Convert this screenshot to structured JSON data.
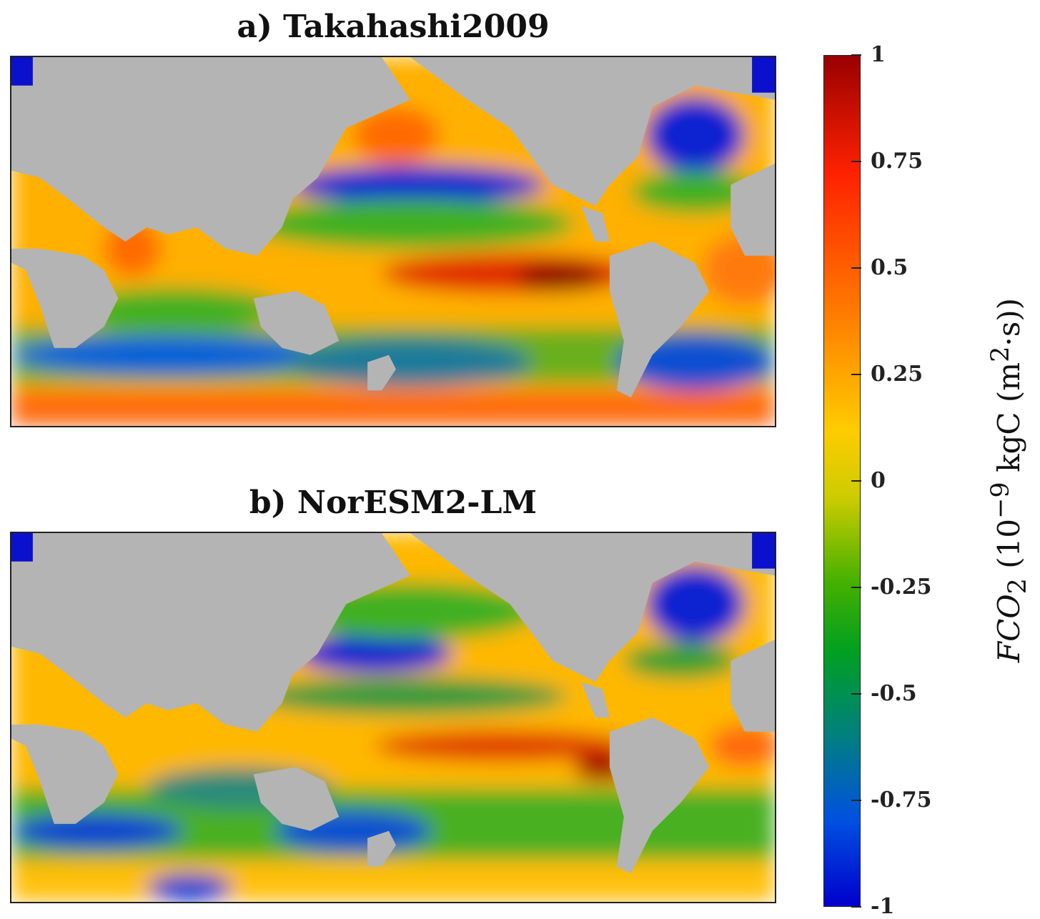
{
  "panels": [
    {
      "title": "a) Takahashi2009"
    },
    {
      "title": "b) NorESM2-LM"
    }
  ],
  "colorbar": {
    "ticks": [
      "1",
      "0.75",
      "0.5",
      "0.25",
      "0",
      "-0.25",
      "-0.5",
      "-0.75",
      "-1"
    ],
    "tick_values": [
      1,
      0.75,
      0.5,
      0.25,
      0,
      -0.25,
      -0.5,
      -0.75,
      -1
    ],
    "range": [
      -1,
      1
    ],
    "label_main": "FCO",
    "label_sub": "2",
    "label_rest": " (10",
    "label_sup": "−9",
    "label_unit": " kgC (m",
    "label_sup2": "2",
    "label_end": "·s))",
    "colors": [
      "#990000",
      "#ff2200",
      "#ff7a00",
      "#ffcc00",
      "#cccc00",
      "#44b000",
      "#00a020",
      "#008080",
      "#0050e0",
      "#0000cc"
    ]
  },
  "colors": {
    "land": "#b4b4b4",
    "ice": "#ffffff",
    "background": "#ffffff"
  }
}
